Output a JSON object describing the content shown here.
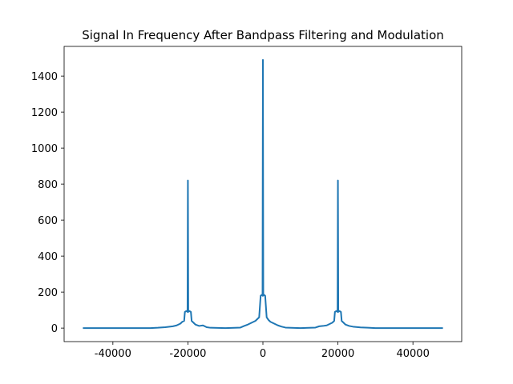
{
  "chart_data": {
    "type": "line",
    "title": "Signal In Frequency After Bandpass Filtering and Modulation",
    "x": [
      -48000,
      -30000,
      -28000,
      -26000,
      -24000,
      -23000,
      -22000,
      -21500,
      -21000,
      -20800,
      -20400,
      -20100,
      -20000,
      -19900,
      -19600,
      -19200,
      -19000,
      -18500,
      -18000,
      -17000,
      -16000,
      -15000,
      -14000,
      -10000,
      -6000,
      -5000,
      -4000,
      -3000,
      -2000,
      -1500,
      -1000,
      -600,
      -300,
      -100,
      0,
      100,
      300,
      600,
      1000,
      1500,
      2000,
      3000,
      4000,
      5000,
      6000,
      10000,
      14000,
      15000,
      16000,
      17000,
      18000,
      18500,
      19000,
      19200,
      19600,
      19900,
      20000,
      20100,
      20400,
      20800,
      21000,
      21500,
      22000,
      23000,
      24000,
      26000,
      28000,
      30000,
      48000
    ],
    "series": [
      {
        "color": "#1f77b4",
        "values": [
          0,
          0,
          2,
          5,
          10,
          15,
          25,
          35,
          40,
          90,
          95,
          90,
          820,
          90,
          95,
          90,
          40,
          30,
          20,
          12,
          15,
          5,
          2,
          0,
          3,
          12,
          20,
          30,
          40,
          50,
          60,
          180,
          185,
          180,
          1490,
          180,
          185,
          180,
          60,
          45,
          35,
          25,
          15,
          8,
          3,
          0,
          3,
          10,
          12,
          15,
          25,
          30,
          40,
          90,
          95,
          90,
          820,
          90,
          95,
          90,
          40,
          30,
          20,
          12,
          8,
          4,
          2,
          0,
          0
        ]
      }
    ],
    "xlim": [
      -53000,
      53000
    ],
    "ylim": [
      -75,
      1565
    ],
    "xticks": [
      -40000,
      -20000,
      0,
      20000,
      40000
    ],
    "yticks": [
      0,
      200,
      400,
      600,
      800,
      1000,
      1200,
      1400
    ]
  }
}
